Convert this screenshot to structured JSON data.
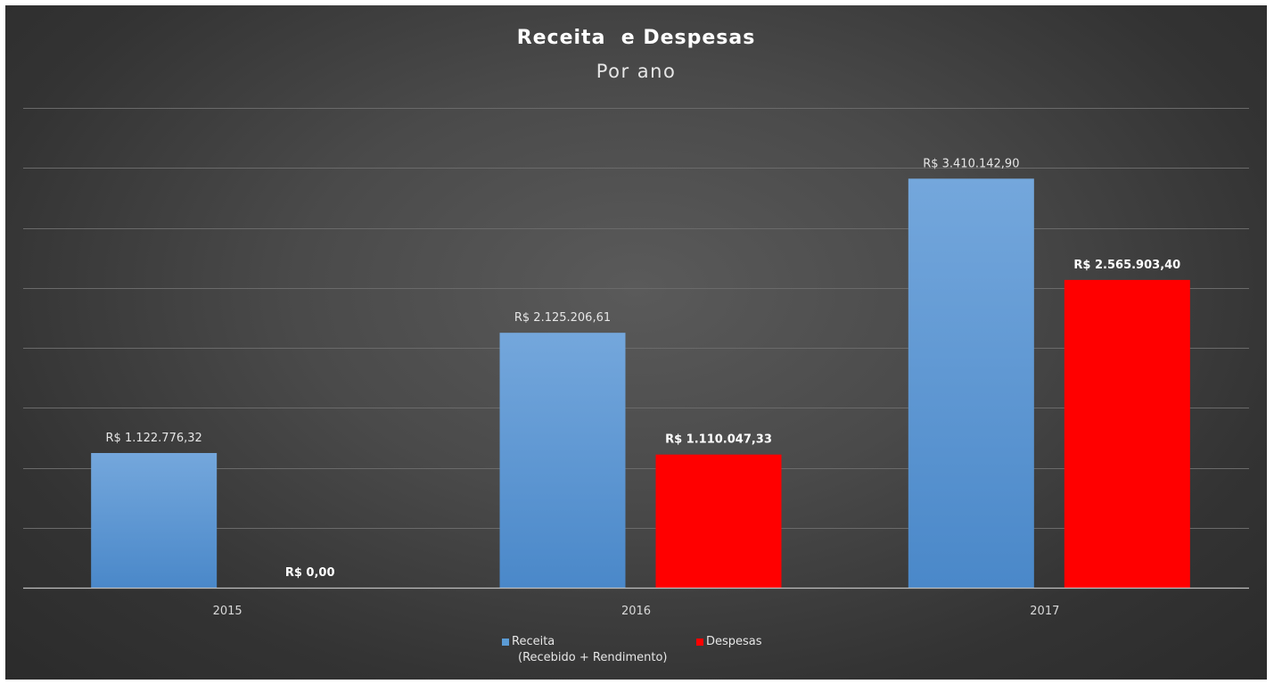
{
  "chart_data": {
    "type": "bar",
    "title": "Receita  e Despesas",
    "subtitle": "Por ano",
    "categories": [
      "2015",
      "2016",
      "2017"
    ],
    "series": [
      {
        "name": "Receita",
        "name_line2": "(Recebido + Rendimento)",
        "color": "#5b9bd5",
        "values": [
          1122776.32,
          2125206.61,
          3410142.9
        ],
        "labels": [
          "R$ 1.122.776,32",
          "R$ 2.125.206,61",
          "R$ 3.410.142,90"
        ]
      },
      {
        "name": "Despesas",
        "color": "#ff0000",
        "values": [
          0,
          1110047.33,
          2565903.4
        ],
        "labels": [
          "R$ 0,00",
          "R$ 1.110.047,33",
          "R$ 2.565.903,40"
        ]
      }
    ],
    "ylim": [
      0,
      4000000
    ],
    "grid": true,
    "y_axis_labels_shown": false,
    "legend_position": "bottom",
    "background": "dark-gradient"
  }
}
